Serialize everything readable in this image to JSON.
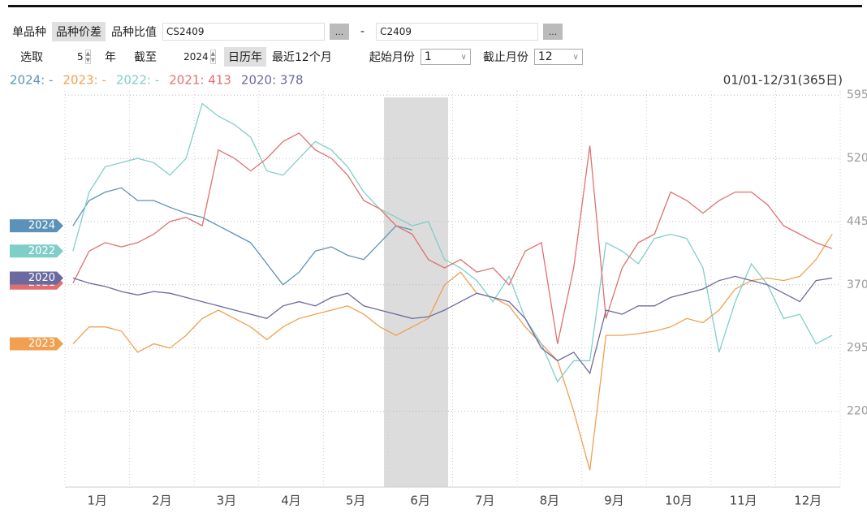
{
  "toolbar": {
    "tabs": [
      "单品种",
      "品种价差",
      "品种比值"
    ],
    "contract_a": "CS2409",
    "browse": "...",
    "separator": "-",
    "contract_b": "C2409",
    "select_label": "选取",
    "years": 5,
    "year_unit": "年",
    "until_label": "截至",
    "until_year": 2024,
    "calendar_year": "日历年",
    "recent_12": "最近12个月",
    "start_month_label": "起始月份",
    "start_month": 1,
    "end_month_label": "截止月份",
    "end_month": 12
  },
  "chart_data": {
    "type": "line",
    "range_label": "01/01-12/31(365日)",
    "categories": [
      null,
      "1月",
      null,
      null,
      null,
      "2月",
      null,
      null,
      null,
      "3月",
      null,
      null,
      null,
      "4月",
      null,
      null,
      null,
      "5月",
      null,
      null,
      null,
      "6月",
      null,
      null,
      null,
      "7月",
      null,
      null,
      null,
      "8月",
      null,
      null,
      null,
      "9月",
      null,
      null,
      null,
      "10月",
      null,
      null,
      null,
      "11月",
      null,
      null,
      null,
      "12月",
      null,
      null
    ],
    "ylim": [
      130,
      600
    ],
    "yticks": [
      220,
      295,
      370,
      445,
      520,
      595
    ],
    "grid": true,
    "series": [
      {
        "name": "2024",
        "legend_label": "2024: -",
        "color": "#5b93b8",
        "values": [
          440,
          470,
          480,
          485,
          470,
          470,
          462,
          455,
          450,
          440,
          430,
          420,
          395,
          370,
          385,
          410,
          415,
          405,
          400,
          420,
          440,
          435,
          null,
          null,
          null,
          null,
          null,
          null,
          null,
          null,
          null,
          null,
          null,
          null,
          null,
          null,
          null,
          null,
          null,
          null,
          null,
          null,
          null,
          null,
          null,
          null,
          null,
          null
        ]
      },
      {
        "name": "2023",
        "legend_label": "2023: -",
        "color": "#f0a050",
        "values": [
          300,
          320,
          320,
          315,
          290,
          300,
          295,
          310,
          330,
          340,
          330,
          320,
          305,
          320,
          330,
          335,
          340,
          345,
          335,
          320,
          310,
          320,
          330,
          370,
          385,
          360,
          355,
          345,
          320,
          300,
          280,
          220,
          150,
          310,
          310,
          312,
          315,
          320,
          330,
          325,
          340,
          365,
          375,
          378,
          375,
          380,
          400,
          430
        ]
      },
      {
        "name": "2022",
        "legend_label": "2022: -",
        "color": "#7fcfc8",
        "values": [
          410,
          480,
          510,
          515,
          520,
          515,
          500,
          520,
          585,
          570,
          560,
          545,
          505,
          500,
          520,
          540,
          530,
          510,
          480,
          460,
          450,
          440,
          445,
          400,
          390,
          375,
          350,
          380,
          330,
          300,
          255,
          280,
          280,
          420,
          410,
          395,
          425,
          430,
          425,
          390,
          290,
          350,
          395,
          370,
          330,
          335,
          300,
          310
        ]
      },
      {
        "name": "2021",
        "legend_label": "2021: 413",
        "color": "#e07070",
        "values": [
          372,
          410,
          420,
          415,
          420,
          430,
          445,
          450,
          440,
          530,
          520,
          505,
          520,
          540,
          550,
          530,
          520,
          500,
          470,
          460,
          440,
          430,
          400,
          390,
          400,
          385,
          390,
          370,
          410,
          420,
          300,
          390,
          535,
          330,
          390,
          420,
          430,
          480,
          470,
          455,
          470,
          480,
          480,
          465,
          440,
          430,
          420,
          413
        ]
      },
      {
        "name": "2020",
        "legend_label": "2020: 378",
        "color": "#6a6aa0",
        "values": [
          378,
          372,
          368,
          362,
          358,
          362,
          360,
          355,
          350,
          345,
          340,
          335,
          330,
          345,
          350,
          345,
          355,
          360,
          345,
          340,
          335,
          330,
          332,
          340,
          350,
          360,
          355,
          350,
          330,
          295,
          280,
          290,
          265,
          340,
          335,
          345,
          345,
          355,
          360,
          365,
          375,
          380,
          375,
          370,
          360,
          350,
          375,
          378
        ]
      }
    ]
  }
}
